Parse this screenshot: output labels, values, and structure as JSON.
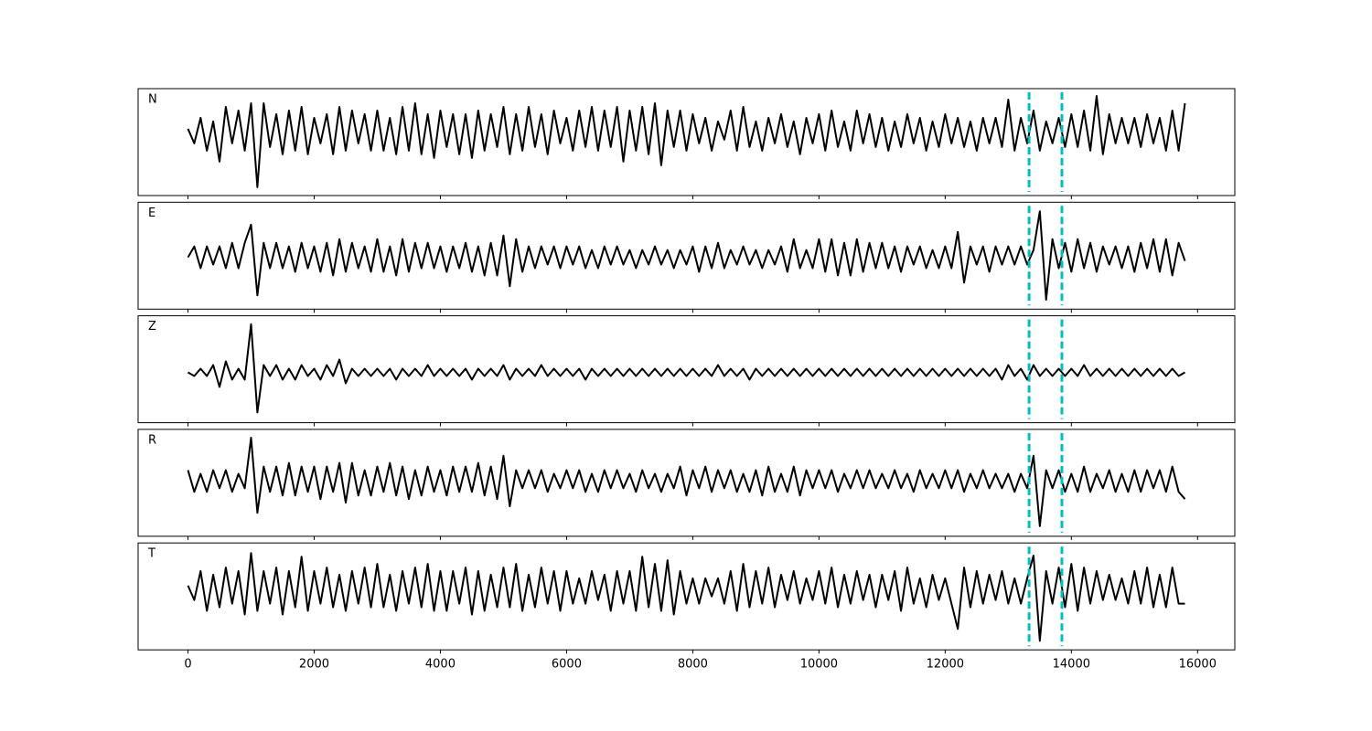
{
  "chart_data": {
    "type": "line",
    "x": [
      0,
      100,
      200,
      300,
      400,
      500,
      600,
      700,
      800,
      900,
      1000,
      1100,
      1200,
      1300,
      1400,
      1500,
      1600,
      1700,
      1800,
      1900,
      2000,
      2100,
      2200,
      2300,
      2400,
      2500,
      2600,
      2700,
      2800,
      2900,
      3000,
      3100,
      3200,
      3300,
      3400,
      3500,
      3600,
      3700,
      3800,
      3900,
      4000,
      4100,
      4200,
      4300,
      4400,
      4500,
      4600,
      4700,
      4800,
      4900,
      5000,
      5100,
      5200,
      5300,
      5400,
      5500,
      5600,
      5700,
      5800,
      5900,
      6000,
      6100,
      6200,
      6300,
      6400,
      6500,
      6600,
      6700,
      6800,
      6900,
      7000,
      7100,
      7200,
      7300,
      7400,
      7500,
      7600,
      7700,
      7800,
      7900,
      8000,
      8100,
      8200,
      8300,
      8400,
      8500,
      8600,
      8700,
      8800,
      8900,
      9000,
      9100,
      9200,
      9300,
      9400,
      9500,
      9600,
      9700,
      9800,
      9900,
      10000,
      10100,
      10200,
      10300,
      10400,
      10500,
      10600,
      10700,
      10800,
      10900,
      11000,
      11100,
      11200,
      11300,
      11400,
      11500,
      11600,
      11700,
      11800,
      11900,
      12000,
      12100,
      12200,
      12300,
      12400,
      12500,
      12600,
      12700,
      12800,
      12900,
      13000,
      13100,
      13200,
      13300,
      13400,
      13500,
      13600,
      13700,
      13800,
      13900,
      14000,
      14100,
      14200,
      14300,
      14400,
      14500,
      14600,
      14700,
      14800,
      14900,
      15000,
      15100,
      15200,
      15300,
      15400,
      15500,
      15600,
      15700,
      15800
    ],
    "xlim": [
      -790,
      16590
    ],
    "xticks": [
      0,
      2000,
      4000,
      6000,
      8000,
      10000,
      12000,
      14000,
      16000
    ],
    "series": [
      {
        "name": "N",
        "color": "#000000",
        "ylim": [
          -1.73,
          1.2
        ],
        "values": [
          0.1,
          -0.3,
          0.4,
          -0.5,
          0.3,
          -0.8,
          0.7,
          -0.3,
          0.6,
          -0.5,
          0.8,
          -1.5,
          0.8,
          -0.4,
          0.5,
          -0.6,
          0.6,
          -0.5,
          0.7,
          -0.6,
          0.4,
          -0.3,
          0.5,
          -0.6,
          0.7,
          -0.5,
          0.6,
          -0.3,
          0.5,
          -0.5,
          0.6,
          -0.5,
          0.4,
          -0.6,
          0.7,
          -0.5,
          0.8,
          -0.6,
          0.5,
          -0.7,
          0.6,
          -0.4,
          0.5,
          -0.6,
          0.5,
          -0.7,
          0.6,
          -0.5,
          0.5,
          -0.4,
          0.7,
          -0.6,
          0.5,
          -0.5,
          0.7,
          -0.4,
          0.5,
          -0.6,
          0.6,
          -0.3,
          0.4,
          -0.5,
          0.6,
          -0.4,
          0.7,
          -0.5,
          0.6,
          -0.4,
          0.7,
          -0.8,
          0.6,
          -0.5,
          0.7,
          -0.6,
          0.8,
          -0.9,
          0.6,
          -0.4,
          0.6,
          -0.5,
          0.5,
          -0.3,
          0.4,
          -0.5,
          0.3,
          -0.2,
          0.6,
          -0.5,
          0.7,
          -0.4,
          0.3,
          -0.5,
          0.4,
          -0.3,
          0.5,
          -0.4,
          0.3,
          -0.6,
          0.4,
          -0.3,
          0.5,
          -0.5,
          0.6,
          -0.4,
          0.3,
          -0.5,
          0.6,
          -0.3,
          0.5,
          -0.4,
          0.4,
          -0.5,
          0.3,
          -0.4,
          0.5,
          -0.3,
          0.4,
          -0.5,
          0.3,
          -0.4,
          0.5,
          -0.3,
          0.4,
          -0.4,
          0.3,
          -0.5,
          0.4,
          -0.3,
          0.4,
          -0.4,
          0.9,
          -0.5,
          0.4,
          -0.3,
          0.6,
          -0.5,
          0.3,
          -0.3,
          0.4,
          -0.4,
          0.5,
          -0.4,
          0.6,
          -0.5,
          1.0,
          -0.6,
          0.5,
          -0.3,
          0.4,
          -0.3,
          0.4,
          -0.4,
          0.5,
          -0.3,
          0.4,
          -0.5,
          0.6,
          -0.5,
          0.8
        ]
      },
      {
        "name": "E",
        "color": "#000000",
        "ylim": [
          -1.43,
          1.52
        ],
        "values": [
          0.0,
          0.3,
          -0.3,
          0.3,
          -0.2,
          0.3,
          -0.3,
          0.4,
          -0.3,
          0.4,
          0.9,
          -1.05,
          0.4,
          -0.3,
          0.4,
          -0.3,
          0.3,
          -0.4,
          0.4,
          -0.3,
          0.3,
          -0.4,
          0.4,
          -0.5,
          0.5,
          -0.4,
          0.4,
          -0.3,
          0.3,
          -0.4,
          0.5,
          -0.4,
          0.3,
          -0.5,
          0.5,
          -0.4,
          0.4,
          -0.3,
          0.4,
          -0.3,
          0.3,
          -0.4,
          0.3,
          -0.3,
          0.4,
          -0.4,
          0.3,
          -0.5,
          0.4,
          -0.5,
          0.6,
          -0.8,
          0.5,
          -0.4,
          0.3,
          -0.3,
          0.3,
          -0.2,
          0.3,
          -0.3,
          0.3,
          -0.2,
          0.3,
          -0.3,
          0.2,
          -0.3,
          0.3,
          -0.2,
          0.3,
          -0.2,
          0.2,
          -0.3,
          0.2,
          -0.2,
          0.3,
          -0.2,
          0.2,
          -0.3,
          0.2,
          -0.2,
          0.3,
          -0.4,
          0.3,
          -0.3,
          0.4,
          -0.3,
          0.2,
          -0.2,
          0.3,
          -0.2,
          0.2,
          -0.3,
          0.2,
          -0.2,
          0.3,
          -0.4,
          0.5,
          -0.3,
          0.2,
          -0.3,
          0.5,
          -0.4,
          0.5,
          -0.5,
          0.4,
          -0.5,
          0.5,
          -0.4,
          0.4,
          -0.3,
          0.4,
          -0.3,
          0.3,
          -0.4,
          0.3,
          -0.2,
          0.3,
          -0.3,
          0.2,
          -0.3,
          0.3,
          -0.3,
          0.7,
          -0.7,
          0.3,
          -0.2,
          0.3,
          -0.4,
          0.3,
          -0.2,
          0.3,
          -0.2,
          0.3,
          -0.2,
          0.2,
          1.27,
          -1.17,
          0.5,
          -0.3,
          0.4,
          -0.4,
          0.5,
          -0.3,
          0.4,
          -0.4,
          0.3,
          -0.2,
          0.3,
          -0.3,
          0.3,
          -0.4,
          0.4,
          -0.3,
          0.5,
          -0.4,
          0.5,
          -0.5,
          0.4,
          -0.1
        ]
      },
      {
        "name": "Z",
        "color": "#000000",
        "ylim": [
          -1.38,
          1.55
        ],
        "values": [
          0.0,
          -0.1,
          0.1,
          -0.1,
          0.2,
          -0.4,
          0.3,
          -0.2,
          0.1,
          -0.2,
          1.32,
          -1.1,
          0.2,
          -0.1,
          0.2,
          -0.2,
          0.1,
          -0.2,
          0.2,
          -0.1,
          0.1,
          -0.2,
          0.2,
          -0.1,
          0.35,
          -0.3,
          0.1,
          -0.1,
          0.1,
          -0.1,
          0.1,
          -0.1,
          0.1,
          -0.2,
          0.1,
          -0.1,
          0.1,
          -0.1,
          0.2,
          -0.1,
          0.1,
          -0.1,
          0.1,
          -0.1,
          0.1,
          -0.2,
          0.1,
          -0.1,
          0.1,
          -0.1,
          0.2,
          -0.2,
          0.1,
          -0.1,
          0.1,
          -0.1,
          0.2,
          -0.1,
          0.1,
          -0.1,
          0.1,
          -0.1,
          0.1,
          -0.2,
          0.1,
          -0.1,
          0.1,
          -0.1,
          0.1,
          -0.1,
          0.1,
          -0.1,
          0.1,
          -0.1,
          0.1,
          -0.1,
          0.1,
          -0.1,
          0.1,
          -0.1,
          0.1,
          -0.1,
          0.1,
          -0.1,
          0.2,
          -0.1,
          0.1,
          -0.1,
          0.1,
          -0.2,
          0.1,
          -0.1,
          0.1,
          -0.1,
          0.1,
          -0.1,
          0.1,
          -0.1,
          0.1,
          -0.1,
          0.1,
          -0.1,
          0.1,
          -0.1,
          0.1,
          -0.1,
          0.1,
          -0.1,
          0.1,
          -0.1,
          0.1,
          -0.1,
          0.1,
          -0.1,
          0.1,
          -0.1,
          0.1,
          -0.1,
          0.1,
          -0.1,
          0.1,
          -0.1,
          0.1,
          -0.1,
          0.1,
          -0.1,
          0.1,
          -0.1,
          0.1,
          -0.2,
          0.2,
          -0.1,
          0.1,
          -0.2,
          0.2,
          -0.1,
          0.1,
          -0.1,
          0.1,
          -0.1,
          0.1,
          -0.1,
          0.2,
          -0.1,
          0.1,
          -0.1,
          0.1,
          -0.1,
          0.1,
          -0.1,
          0.1,
          -0.1,
          0.1,
          -0.1,
          0.1,
          -0.1,
          0.1,
          -0.1,
          0.0
        ]
      },
      {
        "name": "R",
        "color": "#000000",
        "ylim": [
          -1.53,
          1.43
        ],
        "values": [
          0.3,
          -0.3,
          0.2,
          -0.3,
          0.3,
          -0.2,
          0.3,
          -0.3,
          0.2,
          -0.2,
          1.2,
          -0.88,
          0.4,
          -0.3,
          0.4,
          -0.4,
          0.5,
          -0.4,
          0.4,
          -0.3,
          0.4,
          -0.5,
          0.4,
          -0.3,
          0.5,
          -0.6,
          0.5,
          -0.4,
          0.3,
          -0.4,
          0.4,
          -0.3,
          0.5,
          -0.4,
          0.4,
          -0.5,
          0.3,
          -0.4,
          0.4,
          -0.3,
          0.3,
          -0.4,
          0.4,
          -0.3,
          0.4,
          -0.3,
          0.5,
          -0.4,
          0.4,
          -0.5,
          0.7,
          -0.7,
          0.3,
          -0.2,
          0.3,
          -0.2,
          0.3,
          -0.3,
          0.2,
          -0.2,
          0.3,
          -0.2,
          0.3,
          -0.3,
          0.2,
          -0.3,
          0.3,
          -0.2,
          0.3,
          -0.2,
          0.2,
          -0.3,
          0.3,
          -0.2,
          0.2,
          -0.3,
          0.2,
          -0.2,
          0.4,
          -0.4,
          0.3,
          -0.2,
          0.4,
          -0.3,
          0.3,
          -0.2,
          0.3,
          -0.3,
          0.2,
          -0.3,
          0.3,
          -0.4,
          0.4,
          -0.3,
          0.2,
          -0.3,
          0.4,
          -0.4,
          0.3,
          -0.2,
          0.3,
          -0.2,
          0.3,
          -0.3,
          0.2,
          -0.2,
          0.3,
          -0.2,
          0.3,
          -0.2,
          0.2,
          -0.2,
          0.3,
          -0.2,
          0.2,
          -0.3,
          0.3,
          -0.2,
          0.2,
          -0.2,
          0.3,
          -0.2,
          0.3,
          -0.3,
          0.2,
          -0.2,
          0.3,
          -0.2,
          0.2,
          -0.2,
          0.2,
          -0.3,
          0.2,
          -0.2,
          0.7,
          -1.25,
          0.3,
          -0.2,
          0.3,
          -0.3,
          0.2,
          -0.3,
          0.4,
          -0.3,
          0.2,
          -0.2,
          0.3,
          -0.3,
          0.2,
          -0.3,
          0.3,
          -0.3,
          0.3,
          -0.2,
          0.3,
          -0.3,
          0.4,
          -0.3,
          -0.5
        ]
      },
      {
        "name": "T",
        "color": "#000000",
        "ylim": [
          -1.68,
          1.28
        ],
        "values": [
          0.1,
          -0.3,
          0.5,
          -0.6,
          0.4,
          -0.5,
          0.6,
          -0.4,
          0.5,
          -0.7,
          1.0,
          -0.6,
          0.5,
          -0.4,
          0.6,
          -0.7,
          0.5,
          -0.5,
          0.9,
          -0.6,
          0.5,
          -0.4,
          0.6,
          -0.5,
          0.4,
          -0.6,
          0.5,
          -0.4,
          0.6,
          -0.5,
          0.7,
          -0.5,
          0.4,
          -0.6,
          0.5,
          -0.4,
          0.6,
          -0.5,
          0.7,
          -0.6,
          0.5,
          -0.6,
          0.5,
          -0.4,
          0.6,
          -0.7,
          0.5,
          -0.6,
          0.4,
          -0.5,
          0.6,
          -0.5,
          0.7,
          -0.6,
          0.4,
          -0.5,
          0.6,
          -0.4,
          0.5,
          -0.6,
          0.5,
          -0.4,
          0.3,
          -0.4,
          0.5,
          -0.3,
          0.4,
          -0.6,
          0.5,
          -0.4,
          0.5,
          -0.6,
          0.9,
          -0.5,
          0.7,
          -0.6,
          0.8,
          -0.7,
          0.5,
          -0.4,
          0.3,
          -0.4,
          0.3,
          -0.2,
          0.3,
          -0.4,
          0.5,
          -0.6,
          0.7,
          -0.5,
          0.5,
          -0.4,
          0.6,
          -0.5,
          0.4,
          -0.3,
          0.5,
          -0.4,
          0.3,
          -0.3,
          0.5,
          -0.4,
          0.6,
          -0.5,
          0.4,
          -0.4,
          0.5,
          -0.3,
          0.4,
          -0.5,
          0.4,
          -0.3,
          0.5,
          -0.6,
          0.6,
          -0.4,
          0.3,
          -0.5,
          0.4,
          -0.3,
          0.3,
          -0.4,
          -1.1,
          0.6,
          -0.5,
          0.5,
          -0.4,
          0.4,
          -0.3,
          0.5,
          -0.4,
          0.3,
          -0.4,
          0.3,
          0.93,
          -1.43,
          0.5,
          -0.4,
          0.6,
          -0.5,
          0.7,
          -0.6,
          0.6,
          -0.4,
          0.5,
          -0.3,
          0.4,
          -0.3,
          0.3,
          -0.4,
          0.5,
          -0.4,
          0.6,
          -0.5,
          0.4,
          -0.5,
          0.6,
          -0.4,
          -0.4
        ]
      }
    ],
    "markers": {
      "values": [
        13330,
        13850
      ],
      "color": "#00bfbf"
    }
  }
}
